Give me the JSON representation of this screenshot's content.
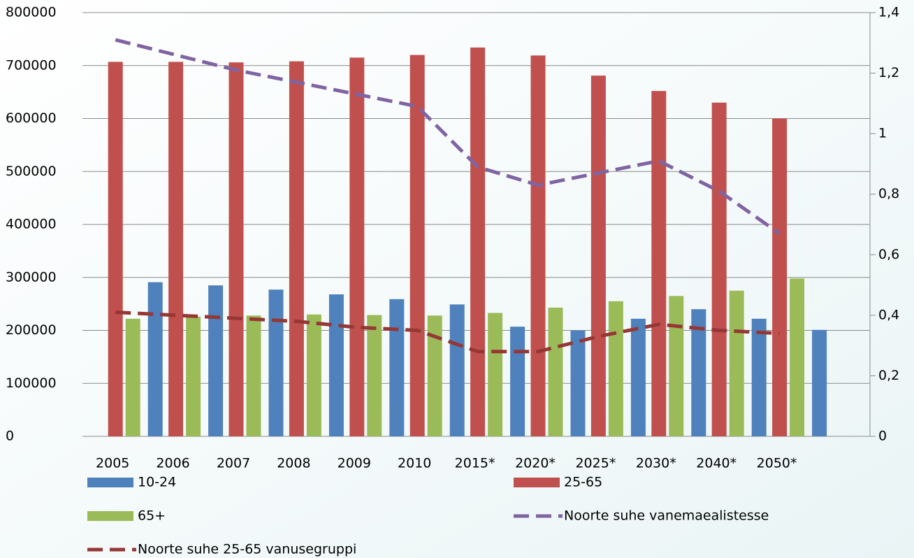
{
  "chart_data": {
    "type": "bar",
    "categories": [
      "2005",
      "2006",
      "2007",
      "2008",
      "2009",
      "2010",
      "2015*",
      "2020*",
      "2025*",
      "2030*",
      "2040*",
      "2050*"
    ],
    "series": [
      {
        "name": "10-24",
        "color": "#4f81bd",
        "values": [
          291000,
          285000,
          277000,
          268000,
          259000,
          249000,
          207000,
          200000,
          222000,
          240000,
          222000,
          201000
        ]
      },
      {
        "name": "25-65",
        "color": "#c0504d",
        "values": [
          707000,
          707000,
          706000,
          708000,
          715000,
          720000,
          734000,
          719000,
          681000,
          652000,
          630000,
          600000
        ]
      },
      {
        "name": "65+",
        "color": "#9bbb59",
        "values": [
          222000,
          226000,
          228000,
          230000,
          229000,
          228000,
          233000,
          243000,
          255000,
          265000,
          275000,
          298000
        ]
      },
      {
        "name": "Noorte suhe vanemaealistesse",
        "type": "line",
        "axis": "y2",
        "color": "#8064a2",
        "values": [
          1.31,
          1.26,
          1.21,
          1.17,
          1.13,
          1.09,
          0.89,
          0.83,
          0.87,
          0.91,
          0.81,
          0.67
        ]
      },
      {
        "name": "Noorte suhe 25-65 vanusegruppi",
        "type": "line",
        "axis": "y2",
        "color": "#953735",
        "values": [
          0.41,
          0.4,
          0.39,
          0.38,
          0.36,
          0.35,
          0.28,
          0.28,
          0.33,
          0.37,
          0.35,
          0.34
        ]
      }
    ],
    "ylim": [
      0,
      800000
    ],
    "yticks": [
      0,
      100000,
      200000,
      300000,
      400000,
      500000,
      600000,
      700000,
      800000
    ],
    "y2lim": [
      0,
      1.4
    ],
    "y2ticks": [
      0,
      {
        "value": 0.2,
        "label": "0,2"
      },
      {
        "value": 0.4,
        "label": "0,4"
      },
      {
        "value": 0.6,
        "label": "0,6"
      },
      {
        "value": 0.8,
        "label": "0,8"
      },
      1,
      {
        "value": 1.2,
        "label": "1,2"
      },
      {
        "value": 1.4,
        "label": "1,4"
      }
    ],
    "grid": true
  }
}
